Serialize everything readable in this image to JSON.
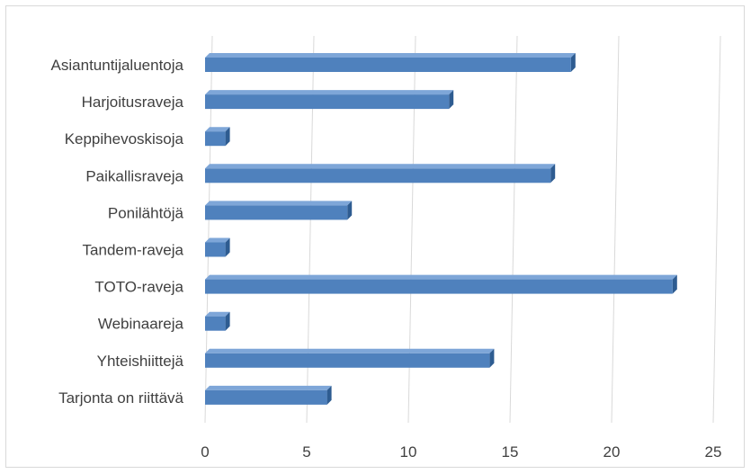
{
  "chart_data": {
    "type": "bar",
    "orientation": "horizontal",
    "style": "3d-bar",
    "categories": [
      "Asiantuntijaluentoja",
      "Harjoitusraveja",
      "Keppihevoskisoja",
      "Paikallisraveja",
      "Ponilähtöjä",
      "Tandem-raveja",
      "TOTO-raveja",
      "Webinaareja",
      "Yhteishiittejä",
      "Tarjonta on riittävä"
    ],
    "values": [
      18,
      12,
      1,
      17,
      7,
      1,
      23,
      1,
      14,
      6
    ],
    "title": "",
    "xlabel": "",
    "ylabel": "",
    "xlim": [
      0,
      25
    ],
    "xticks": [
      "0",
      "5",
      "10",
      "15",
      "20",
      "25"
    ],
    "grid": true,
    "legend": "none",
    "colors": {
      "bar_front": "#4f81bd",
      "bar_top": "#7ea6d8",
      "bar_side": "#2e5c91",
      "grid": "#d9d9d9",
      "text": "#404040"
    }
  }
}
